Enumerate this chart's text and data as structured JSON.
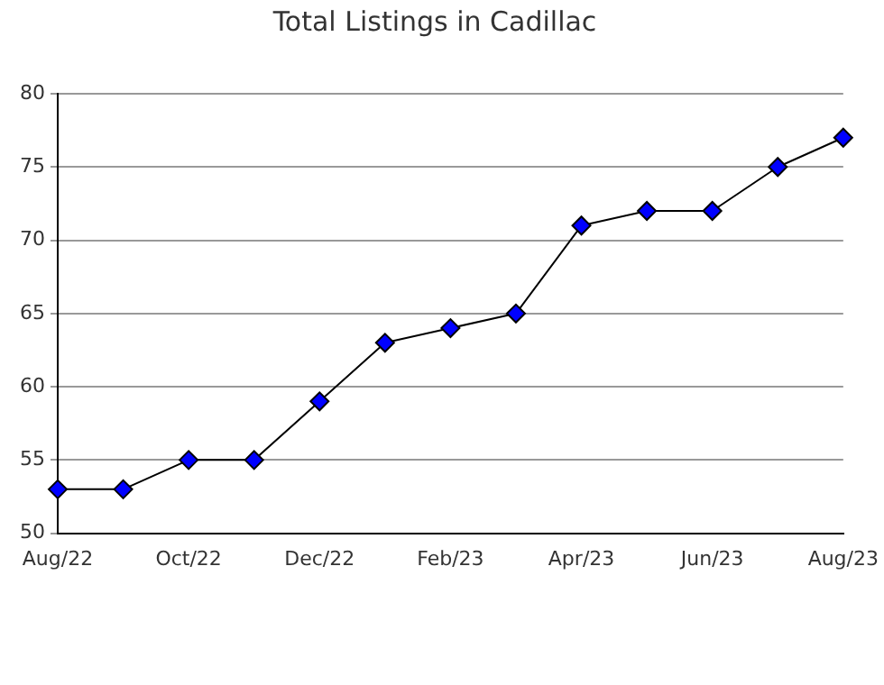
{
  "chart_data": {
    "type": "line",
    "title": "Total Listings in Cadillac",
    "categories": [
      "Aug/22",
      null,
      "Oct/22",
      null,
      "Dec/22",
      null,
      "Feb/23",
      null,
      "Apr/23",
      null,
      "Jun/23",
      null,
      "Aug/23"
    ],
    "series": [
      {
        "color": "#0000ff",
        "values": [
          53,
          53,
          55,
          55,
          59,
          63,
          64,
          65,
          71,
          72,
          72,
          75,
          77
        ]
      }
    ],
    "ylim": [
      50,
      80
    ],
    "yticks": [
      50,
      55,
      60,
      65,
      70,
      75,
      80
    ],
    "grid": "y",
    "marker": "diamond",
    "line_style": "solid",
    "legend": false
  }
}
